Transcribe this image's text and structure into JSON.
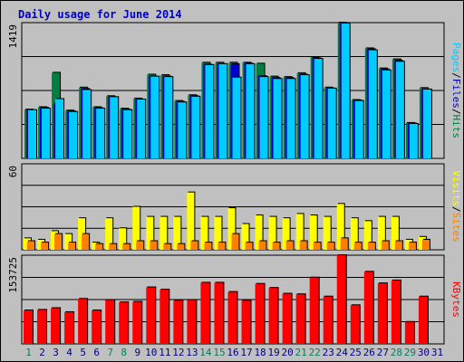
{
  "chart_data": {
    "type": "bar",
    "title": "Daily usage for June 2014",
    "days": [
      "1",
      "2",
      "3",
      "4",
      "5",
      "6",
      "7",
      "8",
      "9",
      "10",
      "11",
      "12",
      "13",
      "14",
      "15",
      "16",
      "17",
      "18",
      "19",
      "20",
      "21",
      "22",
      "23",
      "24",
      "25",
      "26",
      "27",
      "28",
      "29",
      "30",
      "31"
    ],
    "weekend_days": [
      "1",
      "7",
      "8",
      "14",
      "15",
      "21",
      "22",
      "28",
      "29"
    ],
    "panels": [
      {
        "id": "pages_files_hits",
        "ymax": 1419,
        "ymax_label": "1419",
        "right_labels": [
          {
            "text": "Pages",
            "color": "#00ccff"
          },
          {
            "text": "Files",
            "color": "#0000cc"
          },
          {
            "text": "Hits",
            "color": "#008040"
          }
        ],
        "series": [
          {
            "name": "Hits",
            "color": "#008040",
            "values": [
              510,
              535,
              895,
              500,
              740,
              535,
              650,
              520,
              625,
              875,
              870,
              600,
              660,
              1000,
              1000,
              1000,
              1000,
              990,
              855,
              850,
              890,
              1055,
              740,
              1425,
              610,
              1150,
              940,
              1035,
              370,
              735,
              0
            ]
          },
          {
            "name": "Files",
            "color": "#0000cc",
            "values": [
              500,
              530,
              570,
              490,
              725,
              525,
              640,
              510,
              615,
              855,
              855,
              590,
              650,
              980,
              985,
              985,
              990,
              860,
              840,
              840,
              875,
              1045,
              730,
              1415,
              605,
              1140,
              930,
              1020,
              365,
              720,
              0
            ]
          },
          {
            "name": "Pages",
            "color": "#00ccff",
            "values": [
              505,
              520,
              620,
              485,
              715,
              520,
              640,
              505,
              615,
              855,
              850,
              585,
              645,
              975,
              985,
              845,
              985,
              850,
              830,
              830,
              870,
              1040,
              730,
              1410,
              600,
              1130,
              920,
              1010,
              360,
              720,
              0
            ]
          }
        ]
      },
      {
        "id": "visits_sites",
        "ymax": 60,
        "ymax_label": "60",
        "right_labels": [
          {
            "text": "Visits",
            "color": "#ffff00"
          },
          {
            "text": "Sites",
            "color": "#ff8000"
          }
        ],
        "series": [
          {
            "name": "Visits",
            "color": "#ffff00",
            "values": [
              8,
              7,
              13,
              11,
              22,
              5,
              22,
              15,
              30,
              23,
              23,
              23,
              40,
              23,
              23,
              29,
              18,
              24,
              23,
              22,
              25,
              24,
              23,
              32,
              22,
              20,
              23,
              23,
              7,
              9,
              0
            ]
          },
          {
            "name": "Sites",
            "color": "#ff8000",
            "values": [
              6,
              5,
              11,
              5,
              11,
              4,
              4,
              4,
              6,
              6,
              4,
              4,
              6,
              5,
              5,
              11,
              5,
              6,
              5,
              6,
              6,
              5,
              5,
              8,
              5,
              5,
              6,
              6,
              5,
              7,
              0
            ]
          }
        ]
      },
      {
        "id": "kbytes",
        "ymax": 153725,
        "ymax_label": "153725",
        "right_labels": [
          {
            "text": "KBytes",
            "color": "#ff0000"
          }
        ],
        "series": [
          {
            "name": "KBytes",
            "color": "#ff0000",
            "values": [
              58000,
              59000,
              62000,
              55000,
              78000,
              58000,
              76000,
              72000,
              73000,
              98000,
              94000,
              75000,
              76000,
              106000,
              106000,
              90000,
              75000,
              104000,
              97000,
              87000,
              86000,
              115000,
              82000,
              155000,
              67000,
              125000,
              105000,
              110000,
              38000,
              82000,
              0
            ]
          }
        ]
      }
    ]
  }
}
